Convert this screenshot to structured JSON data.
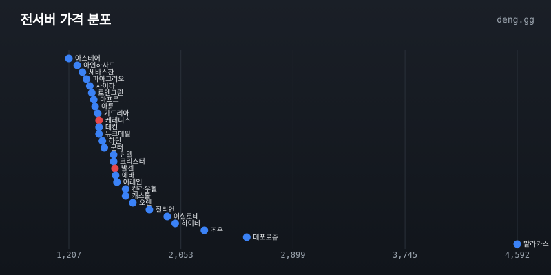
{
  "header": {
    "title": "전서버 가격 분포",
    "brand": "deng.gg"
  },
  "chart_data": {
    "type": "scatter",
    "title": "전서버 가격 분포",
    "xlabel": "",
    "ylabel": "",
    "xticks": [
      1207,
      2053,
      2899,
      3745,
      4592
    ],
    "xtick_labels": [
      "1,207",
      "2,053",
      "2,899",
      "3,745",
      "4,592"
    ],
    "xlim": [
      1207,
      4592
    ],
    "grid": "vertical",
    "colors": {
      "default": "#3b82f6",
      "highlight": "#e5484d"
    },
    "points": [
      {
        "label": "아스테어",
        "x": 1207,
        "highlight": false
      },
      {
        "label": "아인하사드",
        "x": 1270,
        "highlight": false
      },
      {
        "label": "세바스찬",
        "x": 1310,
        "highlight": false
      },
      {
        "label": "파아그리오",
        "x": 1340,
        "highlight": false
      },
      {
        "label": "사이하",
        "x": 1365,
        "highlight": false
      },
      {
        "label": "로엔그린",
        "x": 1380,
        "highlight": false
      },
      {
        "label": "마프르",
        "x": 1395,
        "highlight": false
      },
      {
        "label": "아툰",
        "x": 1405,
        "highlight": false
      },
      {
        "label": "가드리아",
        "x": 1425,
        "highlight": false
      },
      {
        "label": "케레니스",
        "x": 1435,
        "highlight": true
      },
      {
        "label": "데컨",
        "x": 1435,
        "highlight": false
      },
      {
        "label": "듀크데필",
        "x": 1435,
        "highlight": false
      },
      {
        "label": "하딘",
        "x": 1460,
        "highlight": false
      },
      {
        "label": "군터",
        "x": 1475,
        "highlight": false
      },
      {
        "label": "린델",
        "x": 1545,
        "highlight": false
      },
      {
        "label": "크리스터",
        "x": 1545,
        "highlight": false
      },
      {
        "label": "발센",
        "x": 1555,
        "highlight": true
      },
      {
        "label": "에바",
        "x": 1560,
        "highlight": false
      },
      {
        "label": "어레인",
        "x": 1570,
        "highlight": false
      },
      {
        "label": "켄라우헬",
        "x": 1635,
        "highlight": false
      },
      {
        "label": "캐스톨",
        "x": 1635,
        "highlight": false
      },
      {
        "label": "오렌",
        "x": 1690,
        "highlight": false
      },
      {
        "label": "질리언",
        "x": 1815,
        "highlight": false
      },
      {
        "label": "이실로테",
        "x": 1950,
        "highlight": false
      },
      {
        "label": "하이네",
        "x": 2010,
        "highlight": false
      },
      {
        "label": "조우",
        "x": 2230,
        "highlight": false
      },
      {
        "label": "데포로쥬",
        "x": 2550,
        "highlight": false
      },
      {
        "label": "발라카스",
        "x": 4592,
        "highlight": false
      }
    ]
  }
}
